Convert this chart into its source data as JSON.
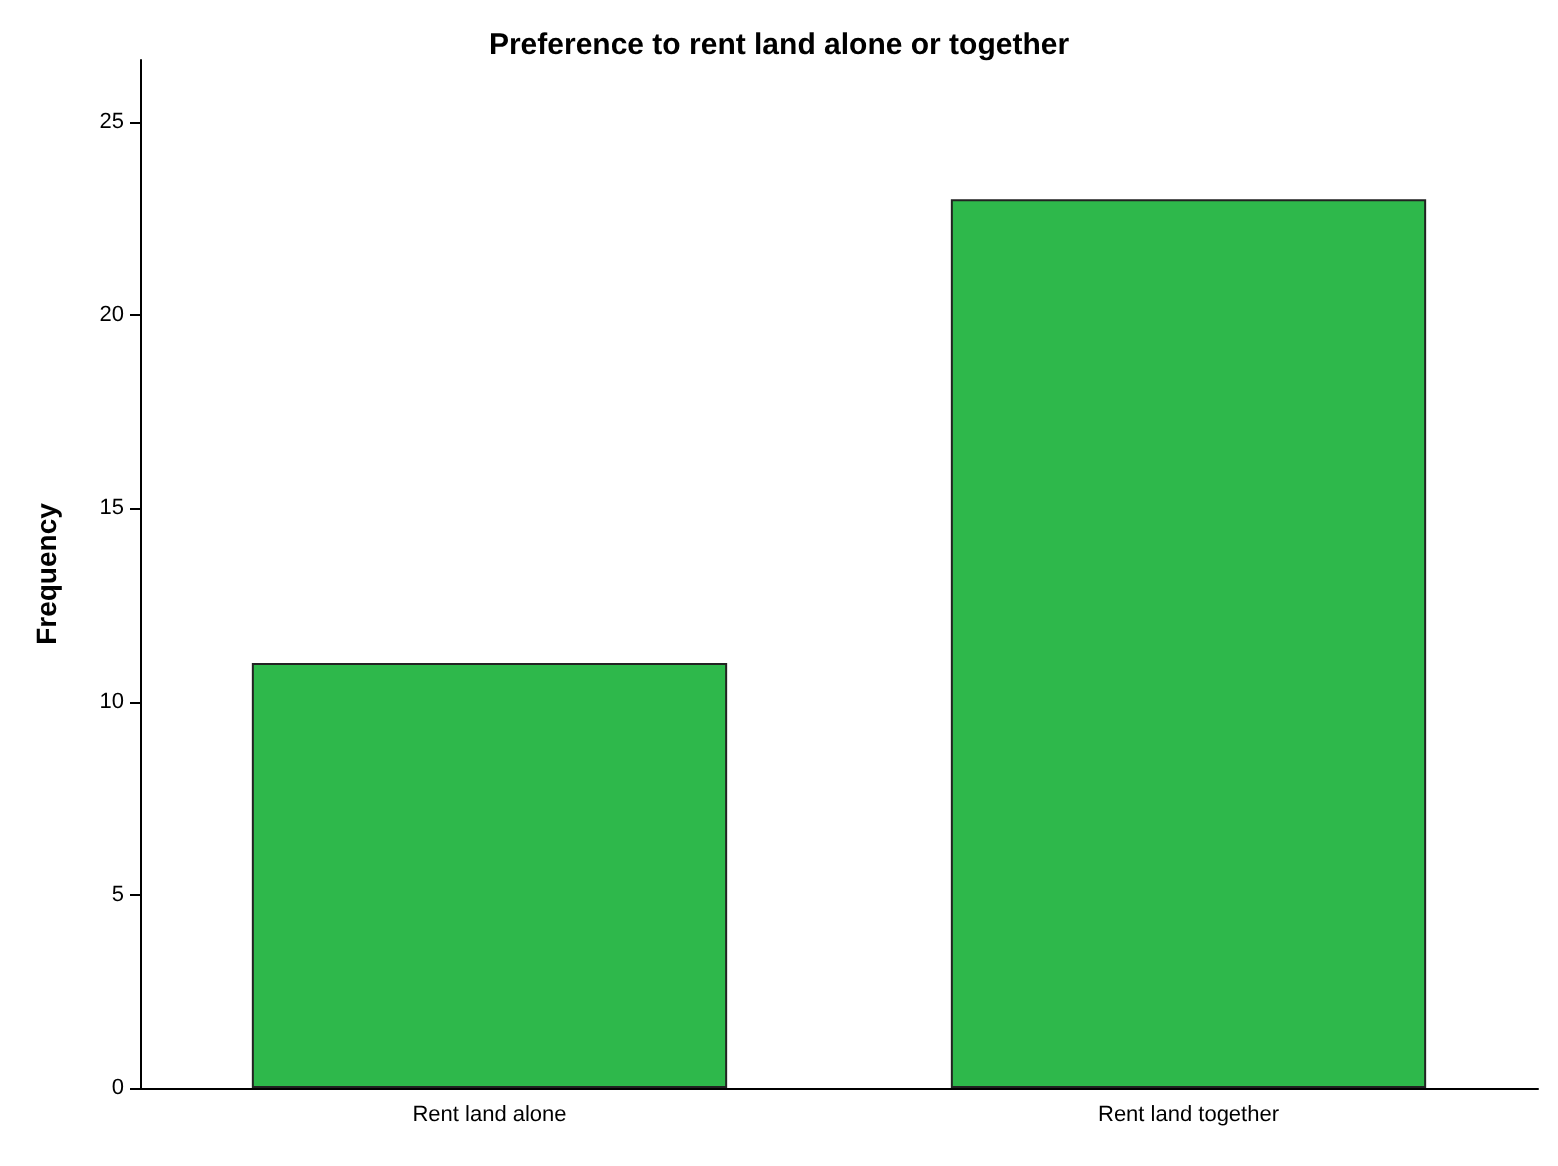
{
  "chart_data": {
    "type": "bar",
    "title": "Preference to rent land alone or together",
    "ylabel": "Frequency",
    "categories": [
      "Rent land alone",
      "Rent land together"
    ],
    "values": [
      11,
      23
    ],
    "color": "#2eb84b",
    "ylim": [
      0,
      26.6
    ],
    "yticks": [
      0,
      5,
      10,
      15,
      20,
      25
    ],
    "grid": false
  }
}
